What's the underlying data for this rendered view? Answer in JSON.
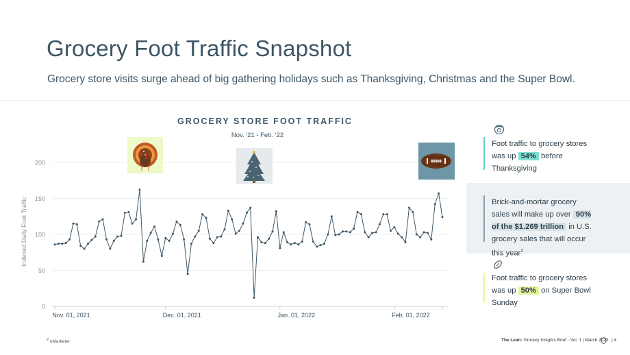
{
  "page": {
    "title": "Grocery Foot Traffic Snapshot",
    "subtitle": "Grocery store visits surge ahead of big gathering holidays such as Thanksgiving, Christmas and the Super Bowl."
  },
  "chart_data": {
    "type": "line",
    "title": "GROCERY STORE FOOT TRAFFIC",
    "subtitle": "Nov. '21 - Feb. '22",
    "ylabel": "Indexed Daily Foot Traffic",
    "xlabel": "",
    "ylim": [
      0,
      220
    ],
    "yticks": [
      0,
      50,
      100,
      150,
      200
    ],
    "xtick_labels": [
      "Nov. 01, 2021",
      "Dec. 01, 2021",
      "Jan. 01, 2022",
      "Feb. 01, 2022"
    ],
    "xtick_days": [
      0,
      30,
      61,
      92
    ],
    "x_start_label": "Nov. 01, 2021",
    "series": [
      {
        "name": "Indexed Daily Foot Traffic",
        "color": "#3d5564",
        "values": [
          86,
          87,
          87,
          88,
          93,
          115,
          114,
          84,
          80,
          87,
          92,
          97,
          118,
          121,
          93,
          80,
          91,
          97,
          98,
          130,
          131,
          115,
          121,
          162,
          62,
          91,
          102,
          111,
          93,
          70,
          95,
          91,
          101,
          118,
          113,
          93,
          45,
          87,
          97,
          105,
          128,
          123,
          94,
          88,
          96,
          97,
          107,
          133,
          121,
          101,
          105,
          115,
          130,
          137,
          12,
          96,
          89,
          88,
          94,
          104,
          132,
          81,
          103,
          89,
          86,
          88,
          86,
          90,
          117,
          114,
          90,
          83,
          85,
          87,
          100,
          125,
          99,
          100,
          104,
          104,
          103,
          108,
          131,
          128,
          103,
          96,
          102,
          103,
          114,
          128,
          128,
          105,
          110,
          101,
          96,
          89,
          137,
          131,
          100,
          96,
          103,
          102,
          93,
          142,
          157,
          124
        ]
      }
    ],
    "annotations": [
      {
        "name": "thanksgiving",
        "icon": "turkey-icon"
      },
      {
        "name": "christmas",
        "icon": "christmas-tree-icon"
      },
      {
        "name": "super-bowl",
        "icon": "football-icon"
      }
    ]
  },
  "panel": {
    "thanksgiving": {
      "text_before": "Foot traffic to grocery stores was up",
      "highlight": "54%",
      "text_after": "before Thanksgiving",
      "color": "#5fd3c2"
    },
    "ecommerce": {
      "text_before": "Brick-and-mortar grocery sales will make up over",
      "highlight": "90% of the $1.269 trillion",
      "text_after": "in U.S. grocery sales that will occur this year",
      "superscript": "2"
    },
    "superbowl": {
      "text_before": "Foot traffic to grocery stores was up",
      "highlight": "50%",
      "text_after": "on Super Bowl Sunday",
      "color": "#e4f59a"
    }
  },
  "footer": {
    "footnote_mark": "2",
    "footnote_source": "eMarketer",
    "brand": "The Lean:",
    "publication": "Grocery Insights Brief - Vol. 1 | March 2022",
    "page_sep": "|",
    "page_number": "4"
  }
}
